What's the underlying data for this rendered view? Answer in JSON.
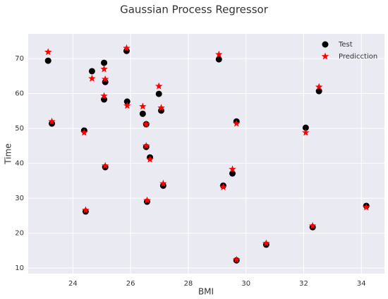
{
  "chart_data": {
    "type": "scatter",
    "title": "Gaussian Process Regressor",
    "x_label": "BMI",
    "y_label": "Time",
    "x": [
      23.14,
      23.27,
      24.39,
      24.44,
      24.66,
      25.08,
      25.08,
      25.12,
      25.12,
      25.86,
      25.88,
      26.42,
      26.54,
      26.54,
      26.57,
      26.67,
      26.98,
      27.06,
      27.13,
      29.06,
      29.21,
      29.53,
      29.67,
      29.67,
      30.7,
      32.07,
      32.31,
      32.53,
      34.17
    ],
    "series": [
      {
        "name": "Test",
        "color": "#000000",
        "marker": "o",
        "values": [
          69.4,
          51.4,
          49.4,
          26.2,
          66.4,
          68.8,
          58.3,
          63.3,
          38.9,
          72.2,
          57.7,
          54.2,
          51.2,
          44.7,
          29.0,
          41.7,
          59.9,
          55.1,
          33.6,
          69.8,
          33.6,
          37.1,
          52.0,
          12.2,
          16.7,
          50.2,
          21.7,
          60.7,
          27.8
        ]
      },
      {
        "name": "Predicction",
        "color": "#ff0000",
        "marker": "*",
        "values": [
          71.9,
          52.0,
          48.8,
          26.6,
          64.3,
          67.0,
          59.3,
          64.1,
          39.3,
          73.0,
          56.5,
          56.3,
          51.2,
          45.0,
          29.4,
          41.1,
          62.1,
          55.9,
          34.2,
          71.2,
          33.2,
          38.3,
          51.4,
          12.4,
          17.1,
          48.8,
          22.1,
          61.9,
          27.4
        ]
      }
    ],
    "xlim": [
      22.45,
      34.8
    ],
    "ylim": [
      8.4,
      77.1
    ],
    "xticks": [
      24,
      26,
      28,
      30,
      32,
      34
    ],
    "yticks": [
      10,
      20,
      30,
      40,
      50,
      60,
      70
    ],
    "grid": true,
    "legend": "upper right"
  }
}
